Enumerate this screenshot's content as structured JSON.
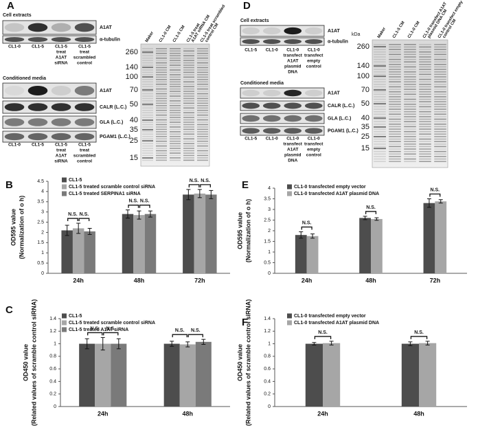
{
  "panels": [
    {
      "label": "A",
      "sections": [
        {
          "title": "Cell extracts",
          "rows": [
            "A1AT",
            "α-tubulin"
          ],
          "lanes": [
            [
              "CL1-0"
            ],
            [
              "CL1-5"
            ],
            [
              "CL1-5",
              "treat",
              "A1AT",
              "siRNA"
            ],
            [
              "CL1-5",
              "treat",
              "scrambled",
              "control"
            ]
          ]
        },
        {
          "title": "Conditioned media",
          "rows": [
            "A1AT",
            "CALR (L.C.)",
            "GLA (L.C.)",
            "PGAM1 (L.C.)"
          ],
          "lanes": [
            [
              "CL1-0"
            ],
            [
              "CL1-5"
            ],
            [
              "CL1-5",
              "treat",
              "A1AT",
              "siRNA"
            ],
            [
              "CL1-5",
              "treat",
              "scrambled",
              "control"
            ]
          ]
        }
      ],
      "gel": {
        "lanes": [
          [
            "Maker"
          ],
          [
            "CL1-0 CM"
          ],
          [
            "CL1-5 CM"
          ],
          [
            "CL1-5 treat",
            "A1AT siRNA CM"
          ],
          [
            "CL1-5 treat scrambled",
            "control CM"
          ]
        ],
        "mw": [
          260,
          140,
          100,
          70,
          50,
          40,
          35,
          25,
          15
        ]
      }
    },
    {
      "label": "D",
      "sections": [
        {
          "title": "Cell extracts",
          "rows": [
            "A1AT",
            "α-tubulin"
          ],
          "lanes": [
            [
              "CL1-5"
            ],
            [
              "CL1-0"
            ],
            [
              "CL1-0",
              "transfect",
              "A1AT",
              "plasmid",
              "DNA"
            ],
            [
              "CL1-0",
              "transfect",
              "empty",
              "control"
            ]
          ]
        },
        {
          "title": "Conditioned media",
          "rows": [
            "A1AT",
            "CALR (L.C.)",
            "GLA (L.C.)",
            "PGAM1 (L.C.)"
          ],
          "lanes": [
            [
              "CL1-5"
            ],
            [
              "CL1-0"
            ],
            [
              "CL1-0",
              "transfect",
              "A1AT",
              "plasmid",
              "DNA"
            ],
            [
              "CL1-0",
              "transfect",
              "empty",
              "control"
            ]
          ]
        }
      ],
      "gel": {
        "unit": "kDa",
        "lanes": [
          [
            "Maker"
          ],
          [
            "CL1-5 CM"
          ],
          [
            "CL1-0 CM"
          ],
          [
            "CL1-0 transfect A1AT",
            "plasmid DNA CM"
          ],
          [
            "CL1-0 transfect empty",
            "control CM"
          ]
        ],
        "mw": [
          260,
          140,
          100,
          70,
          50,
          40,
          35,
          25,
          15
        ]
      }
    }
  ],
  "chart_data": [
    {
      "type": "bar",
      "panel": "B",
      "ylabel": [
        "OD595 value",
        "(Normalization of o h)"
      ],
      "categories": [
        "24h",
        "48h",
        "72h"
      ],
      "series": [
        {
          "name": "CL1-5",
          "color": "#4d4d4d",
          "values": [
            2.1,
            2.9,
            3.85
          ],
          "errors": [
            0.25,
            0.2,
            0.25
          ]
        },
        {
          "name": "CL1-5 treated scramble control siRNA",
          "color": "#a6a6a6",
          "values": [
            2.2,
            2.85,
            3.9
          ],
          "errors": [
            0.25,
            0.2,
            0.2
          ]
        },
        {
          "name": "CL1-5 treated SERPINA1 siRNA",
          "color": "#7a7a7a",
          "values": [
            2.05,
            2.9,
            3.85
          ],
          "errors": [
            0.15,
            0.15,
            0.2
          ]
        }
      ],
      "annotations": [
        "N.S.",
        "N.S.",
        "N.S.",
        "N.S.",
        "N.S.",
        "N.S."
      ],
      "ylim": [
        0,
        4.5
      ],
      "yticks": [
        0,
        0.5,
        1,
        1.5,
        2,
        2.5,
        3,
        3.5,
        4,
        4.5
      ]
    },
    {
      "type": "bar",
      "panel": "C",
      "ylabel": [
        "OD450 value",
        "(Related values of scramble control siRNA)"
      ],
      "categories": [
        "24h",
        "48h"
      ],
      "series": [
        {
          "name": "CL1-5",
          "color": "#4d4d4d",
          "values": [
            1.0,
            1.0
          ],
          "errors": [
            0.08,
            0.04
          ]
        },
        {
          "name": "CL1-5 treated scramble control siRNA",
          "color": "#a6a6a6",
          "values": [
            1.0,
            0.99
          ],
          "errors": [
            0.1,
            0.04
          ]
        },
        {
          "name": "CL1-5 treated   A1AT siRNA",
          "color": "#7a7a7a",
          "values": [
            1.0,
            1.03
          ],
          "errors": [
            0.08,
            0.04
          ]
        }
      ],
      "annotations": [
        "N.S.",
        "N.S.",
        "N.S.",
        "N.S."
      ],
      "ylim": [
        0,
        1.4
      ],
      "yticks": [
        0,
        0.2,
        0.4,
        0.6,
        0.8,
        1,
        1.2,
        1.4
      ]
    },
    {
      "type": "bar",
      "panel": "E",
      "ylabel": [
        "OD595 value",
        "(Normalization of o h)"
      ],
      "categories": [
        "24h",
        "48h",
        "72h"
      ],
      "series": [
        {
          "name": "CL1-0 transfected empty vector",
          "color": "#4d4d4d",
          "values": [
            1.8,
            2.6,
            3.3
          ],
          "errors": [
            0.15,
            0.08,
            0.2
          ]
        },
        {
          "name": "CL1-0 transfected   A1AT plasmid DNA",
          "color": "#a6a6a6",
          "values": [
            1.75,
            2.55,
            3.38
          ],
          "errors": [
            0.1,
            0.06,
            0.08
          ]
        }
      ],
      "annotations": [
        "N.S.",
        "N.S.",
        "N.S."
      ],
      "ylim": [
        0,
        4
      ],
      "yticks": [
        0,
        0.5,
        1,
        1.5,
        2,
        2.5,
        3,
        3.5,
        4
      ]
    },
    {
      "type": "bar",
      "panel": "F",
      "ylabel": [
        "OD450 value",
        "(Related values of scramble control siRNA)"
      ],
      "categories": [
        "24h",
        "48h"
      ],
      "series": [
        {
          "name": "CL1-0 transfected empty vector",
          "color": "#4d4d4d",
          "values": [
            1.0,
            1.0
          ],
          "errors": [
            0.02,
            0.03
          ]
        },
        {
          "name": "CL1-0 transfected   A1AT plasmid DNA",
          "color": "#a6a6a6",
          "values": [
            1.01,
            1.01
          ],
          "errors": [
            0.03,
            0.03
          ]
        }
      ],
      "annotations": [
        "N.S.",
        "N.S."
      ],
      "ylim": [
        0,
        1.4
      ],
      "yticks": [
        0,
        0.2,
        0.4,
        0.6,
        0.8,
        1,
        1.2,
        1.4
      ]
    }
  ]
}
